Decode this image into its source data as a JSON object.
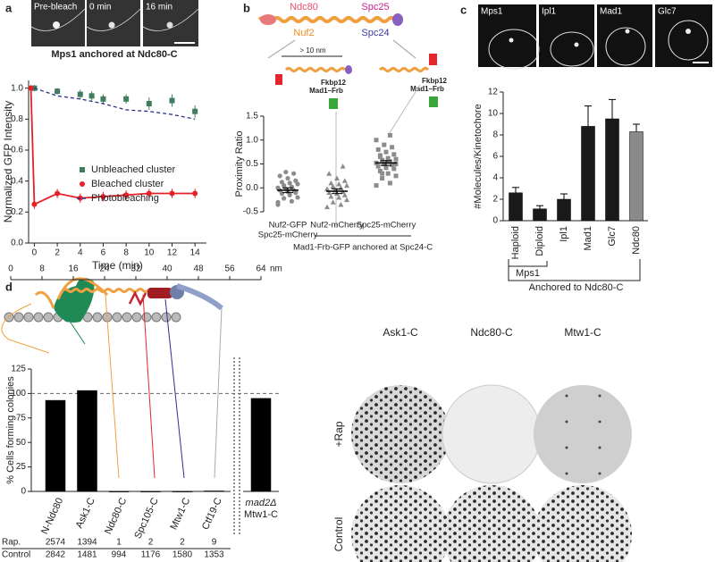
{
  "figure": {
    "panel_labels": [
      "a",
      "b",
      "c",
      "d"
    ],
    "a": {
      "images": [
        "Pre-bleach",
        "0 min",
        "16 min"
      ]
    },
    "b": {
      "diagram": {
        "top": [
          "Ndc80",
          "Nuf2",
          "Spc25",
          "Spc24"
        ],
        "distance": "> 10 nm",
        "construct_left": [
          "Fkbp12",
          "Mad1–Frb"
        ],
        "construct_right": [
          "Fkbp12",
          "Mad1–Frb"
        ]
      }
    },
    "c": {
      "images": [
        "Mps1",
        "Ipl1",
        "Mad1",
        "Glc7"
      ]
    },
    "d": {
      "scale": {
        "ticks": [
          0,
          8,
          16,
          24,
          32,
          40,
          48,
          56,
          64
        ],
        "unit": "nm"
      },
      "plates": {
        "columns": [
          "Ask1-C",
          "Ndc80-C",
          "Mtw1-C"
        ],
        "rows": [
          "+Rap",
          "Control"
        ]
      },
      "counts": {
        "rows": [
          {
            "label": "Rap.",
            "values": [
              2574,
              1394,
              1,
              2,
              2,
              9
            ]
          },
          {
            "label": "Control",
            "values": [
              2842,
              1481,
              994,
              1176,
              1580,
              1353
            ]
          }
        ]
      }
    }
  },
  "chart_data": [
    {
      "type": "line",
      "title": "Mps1 anchored at Ndc80-C",
      "xlabel": "Time (min)",
      "ylabel": "Normalized GFP Intensity",
      "xlim": [
        -0.5,
        15
      ],
      "ylim": [
        0,
        1.05
      ],
      "xticks": [
        0,
        2,
        4,
        6,
        8,
        10,
        12,
        14
      ],
      "yticks": [
        {
          "value": 0,
          "label": "0.0"
        },
        0.2,
        0.4,
        0.6,
        0.8,
        {
          "value": 1,
          "label": "1.0"
        }
      ],
      "legend": "right",
      "series": [
        {
          "name": "Unbleached cluster",
          "color": "#3f7d5e",
          "marker": "square",
          "line": "none",
          "x": [
            0,
            2,
            4,
            5,
            6,
            8,
            10,
            12,
            14
          ],
          "values": [
            1.0,
            0.98,
            0.96,
            0.95,
            0.93,
            0.93,
            0.9,
            0.92,
            0.85
          ],
          "errors": [
            0.02,
            0.02,
            0.03,
            0.03,
            0.03,
            0.03,
            0.04,
            0.04,
            0.04
          ]
        },
        {
          "name": "Bleached cluster",
          "color": "#e8202a",
          "marker": "circle",
          "line": "solid",
          "x": [
            -0.3,
            0,
            2,
            4,
            6,
            8,
            10,
            12,
            14
          ],
          "values": [
            1.0,
            0.25,
            0.32,
            0.29,
            0.3,
            0.31,
            0.32,
            0.32,
            0.32
          ],
          "errors": [
            0.02,
            0.03,
            0.03,
            0.03,
            0.03,
            0.03,
            0.03,
            0.03,
            0.03
          ]
        },
        {
          "name": "Photobleaching",
          "color": "#2b2f8f",
          "marker": "none",
          "line": "dashed",
          "x": [
            0,
            2,
            4,
            6,
            8,
            10,
            12,
            14
          ],
          "values": [
            1.0,
            0.95,
            0.93,
            0.9,
            0.86,
            0.85,
            0.83,
            0.8
          ]
        }
      ]
    },
    {
      "type": "dotplot",
      "ylabel": "Proximity Ratio",
      "ylim": [
        -0.5,
        1.5
      ],
      "yticks": [
        -0.5,
        {
          "value": 0,
          "label": "0.0"
        },
        0.5,
        {
          "value": 1,
          "label": "1.0"
        },
        1.5
      ],
      "group_label": "Mad1-Frb-GFP anchored at Spc24-C",
      "groups": [
        {
          "label": [
            "Nuf2-GFP",
            "Spc25-mCherry"
          ],
          "marker": "circle",
          "color": "#8c8c8c",
          "mean": -0.05,
          "error": 0.05,
          "points": [
            -0.35,
            -0.28,
            -0.22,
            -0.2,
            -0.15,
            -0.12,
            -0.1,
            -0.08,
            -0.05,
            -0.05,
            -0.02,
            0,
            0.02,
            0.05,
            0.08,
            0.1,
            0.12,
            0.15,
            0.2,
            0.25,
            0.3,
            0.33,
            -0.3,
            0.0
          ]
        },
        {
          "label": [
            "Nuf2-mCherry"
          ],
          "marker": "triangle",
          "color": "#8c8c8c",
          "mean": -0.07,
          "error": 0.05,
          "points": [
            -0.4,
            -0.35,
            -0.3,
            -0.25,
            -0.2,
            -0.18,
            -0.15,
            -0.12,
            -0.1,
            -0.08,
            -0.05,
            -0.02,
            0,
            0.03,
            0.05,
            0.08,
            0.1,
            0.15,
            0.2,
            0.3,
            0.45
          ]
        },
        {
          "label": [
            "Spc25-mCherry"
          ],
          "marker": "square",
          "color": "#8c8c8c",
          "mean": 0.52,
          "error": 0.05,
          "points": [
            0.05,
            0.1,
            0.2,
            0.25,
            0.3,
            0.35,
            0.4,
            0.42,
            0.45,
            0.48,
            0.5,
            0.52,
            0.55,
            0.58,
            0.6,
            0.62,
            0.65,
            0.7,
            0.75,
            0.8,
            0.85,
            0.9,
            1.0,
            1.1,
            0.3,
            0.5,
            0.55,
            0.68
          ]
        }
      ]
    },
    {
      "type": "bar",
      "ylabel": "#Molecules/Kinetochore",
      "ylim": [
        0,
        12
      ],
      "yticks": [
        0,
        2,
        4,
        6,
        8,
        10,
        12
      ],
      "categories": [
        "Haploid",
        "Diploid",
        "Ipl1",
        "Mad1",
        "Glc7",
        "Ndc80"
      ],
      "values": [
        2.6,
        1.1,
        2.0,
        8.8,
        9.5,
        8.3
      ],
      "errors": [
        0.5,
        0.3,
        0.5,
        1.9,
        1.8,
        0.7
      ],
      "colors": [
        "#1a1a1a",
        "#1a1a1a",
        "#1a1a1a",
        "#1a1a1a",
        "#1a1a1a",
        "#8a8a8a"
      ],
      "brackets": [
        "Mps1",
        "Anchored to Ndc80-C"
      ]
    },
    {
      "type": "bar",
      "ylabel": "% Cells forming colonies",
      "ylim": [
        0,
        125
      ],
      "yticks": [
        0,
        25,
        50,
        75,
        100,
        125
      ],
      "reference_line": 100,
      "categories": [
        "N-Ndc80",
        "Ask1-C",
        "Ndc80-C",
        "Spc105-C",
        "Mtw1-C",
        "Ctf19-C",
        [
          "mad2Δ",
          "Mtw1-C"
        ]
      ],
      "values": [
        93,
        103,
        0,
        0,
        0,
        0.5,
        95
      ],
      "color": "#000000"
    }
  ]
}
